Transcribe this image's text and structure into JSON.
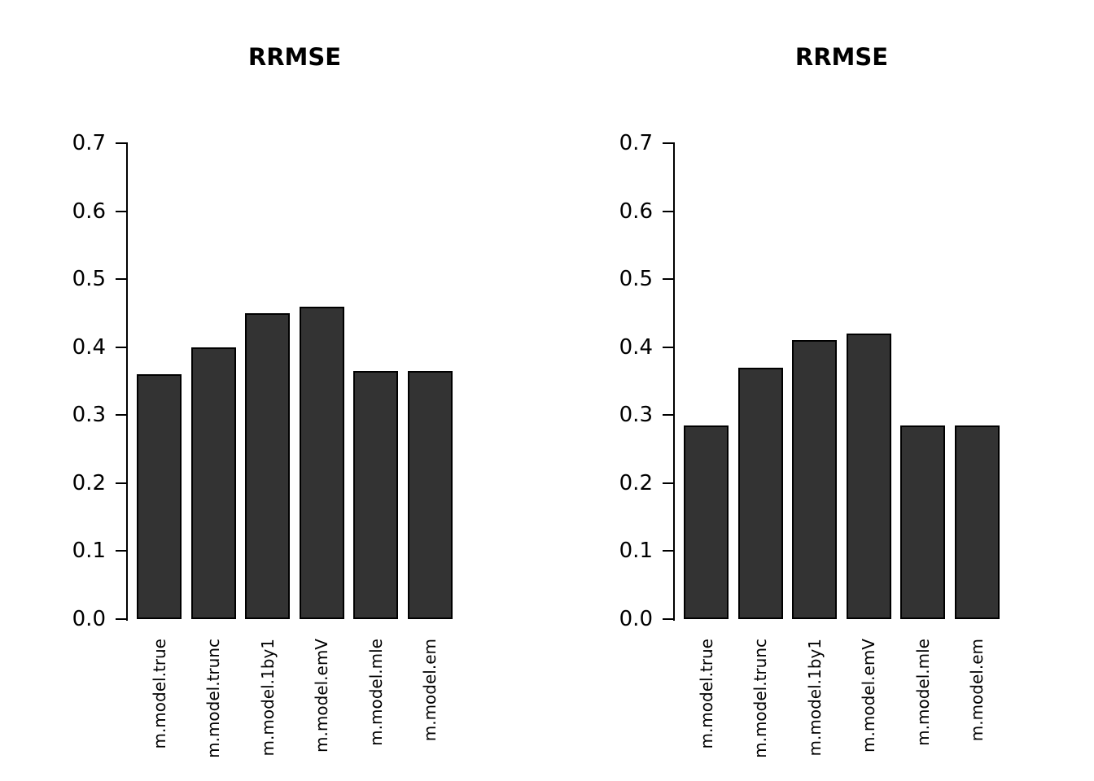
{
  "chart_data": [
    {
      "type": "bar",
      "title": "RRMSE",
      "categories": [
        "m.model.true",
        "m.model.trunc",
        "m.model.1by1",
        "m.model.emV",
        "m.model.mle",
        "m.model.em"
      ],
      "values": [
        0.36,
        0.4,
        0.45,
        0.46,
        0.365,
        0.365
      ],
      "xlabel": "",
      "ylabel": "",
      "ylim": [
        0,
        0.7
      ],
      "ytick_step": 0.1,
      "ytick_labels": [
        "0.0",
        "0.1",
        "0.2",
        "0.3",
        "0.4",
        "0.5",
        "0.6",
        "0.7"
      ],
      "grid": false,
      "legend": "none",
      "bar_color": "#333333",
      "bar_border": "#000000"
    },
    {
      "type": "bar",
      "title": "RRMSE",
      "categories": [
        "m.model.true",
        "m.model.trunc",
        "m.model.1by1",
        "m.model.emV",
        "m.model.mle",
        "m.model.em"
      ],
      "values": [
        0.285,
        0.37,
        0.41,
        0.42,
        0.285,
        0.285
      ],
      "xlabel": "",
      "ylabel": "",
      "ylim": [
        0,
        0.7
      ],
      "ytick_step": 0.1,
      "ytick_labels": [
        "0.0",
        "0.1",
        "0.2",
        "0.3",
        "0.4",
        "0.5",
        "0.6",
        "0.7"
      ],
      "grid": false,
      "legend": "none",
      "bar_color": "#333333",
      "bar_border": "#000000"
    }
  ]
}
